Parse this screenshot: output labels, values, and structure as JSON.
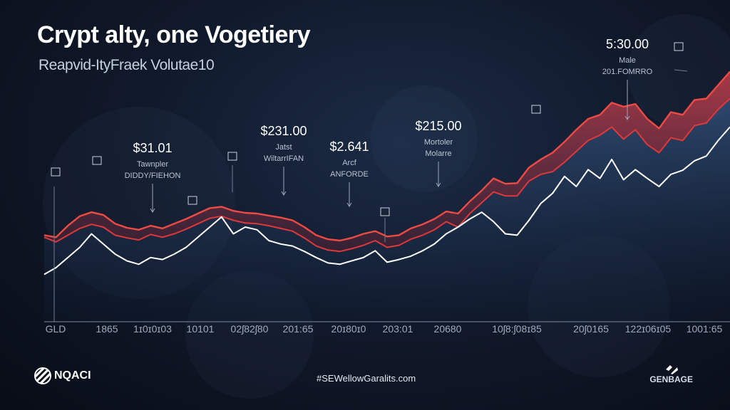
{
  "header": {
    "title": "Crypt alty, one Vogetiery",
    "subtitle": "Reapvid-ItyFraek Volutae10"
  },
  "footer": {
    "hashtag": "#SEWellowGaralits.com",
    "brand_left": "NQACI",
    "brand_right": "GENBAGE"
  },
  "colors": {
    "background": "#0b1220",
    "red_series": "#e0383a",
    "red_band": "#b5282c",
    "white_series": "#ffffff",
    "area_fill": "#2c4a73"
  },
  "chart_data": {
    "type": "line",
    "x_tick_labels": [
      "GLD",
      "1865",
      "1ɪ0ɪ0ɪ03",
      "10101",
      "02ʃ82ʃ80",
      "201:65",
      "20ɪ80ɪ0",
      "203:01",
      "20680",
      "10ʃ8:ʃ08ɪ85",
      "20ʃ0165",
      "122ɪ06ɪ05",
      "1001:65"
    ],
    "series": [
      {
        "points": [
          [
            0,
            128
          ],
          [
            1,
            125
          ],
          [
            2,
            142
          ],
          [
            3,
            156
          ],
          [
            4,
            162
          ],
          [
            5,
            158
          ],
          [
            6,
            145
          ],
          [
            7,
            139
          ],
          [
            8,
            136
          ],
          [
            9,
            142
          ],
          [
            10,
            138
          ],
          [
            11,
            145
          ],
          [
            12,
            152
          ],
          [
            13,
            160
          ],
          [
            14,
            168
          ],
          [
            15,
            170
          ],
          [
            16,
            164
          ],
          [
            17,
            161
          ],
          [
            18,
            160
          ],
          [
            19,
            157
          ],
          [
            20,
            154
          ],
          [
            21,
            150
          ],
          [
            22,
            140
          ],
          [
            23,
            128
          ],
          [
            24,
            122
          ],
          [
            25,
            120
          ],
          [
            26,
            124
          ],
          [
            27,
            130
          ],
          [
            28,
            134
          ],
          [
            29,
            126
          ],
          [
            30,
            128
          ],
          [
            31,
            138
          ],
          [
            32,
            144
          ],
          [
            33,
            152
          ],
          [
            34,
            163
          ],
          [
            35,
            160
          ],
          [
            36,
            178
          ],
          [
            37,
            194
          ],
          [
            38,
            212
          ],
          [
            39,
            204
          ],
          [
            40,
            205
          ],
          [
            41,
            228
          ],
          [
            42,
            240
          ],
          [
            43,
            250
          ],
          [
            44,
            266
          ],
          [
            45,
            284
          ],
          [
            46,
            300
          ],
          [
            47,
            306
          ],
          [
            48,
            324
          ],
          [
            49,
            318
          ],
          [
            50,
            322
          ],
          [
            51,
            300
          ],
          [
            52,
            286
          ],
          [
            53,
            310
          ],
          [
            54,
            306
          ],
          [
            55,
            328
          ],
          [
            56,
            330
          ],
          [
            57,
            350
          ],
          [
            58,
            370
          ]
        ]
      },
      {
        "points": [
          [
            0,
            125
          ],
          [
            1,
            118
          ],
          [
            2,
            128
          ],
          [
            3,
            138
          ],
          [
            4,
            144
          ],
          [
            5,
            140
          ],
          [
            6,
            128
          ],
          [
            7,
            124
          ],
          [
            8,
            121
          ],
          [
            9,
            129
          ],
          [
            10,
            125
          ],
          [
            11,
            130
          ],
          [
            12,
            137
          ],
          [
            13,
            145
          ],
          [
            14,
            153
          ],
          [
            15,
            156
          ],
          [
            16,
            150
          ],
          [
            17,
            146
          ],
          [
            18,
            145
          ],
          [
            19,
            142
          ],
          [
            20,
            138
          ],
          [
            21,
            134
          ],
          [
            22,
            124
          ],
          [
            23,
            112
          ],
          [
            24,
            106
          ],
          [
            25,
            104
          ],
          [
            26,
            108
          ],
          [
            27,
            113
          ],
          [
            28,
            120
          ],
          [
            29,
            110
          ],
          [
            30,
            113
          ],
          [
            31,
            122
          ],
          [
            32,
            128
          ],
          [
            33,
            136
          ],
          [
            34,
            148
          ],
          [
            35,
            140
          ],
          [
            36,
            160
          ],
          [
            37,
            176
          ],
          [
            38,
            192
          ],
          [
            39,
            186
          ],
          [
            40,
            186
          ],
          [
            41,
            208
          ],
          [
            42,
            218
          ],
          [
            43,
            222
          ],
          [
            44,
            236
          ],
          [
            45,
            252
          ],
          [
            46,
            268
          ],
          [
            47,
            276
          ],
          [
            48,
            288
          ],
          [
            49,
            270
          ],
          [
            50,
            284
          ],
          [
            51,
            262
          ],
          [
            52,
            250
          ],
          [
            53,
            272
          ],
          [
            54,
            268
          ],
          [
            55,
            290
          ],
          [
            56,
            294
          ],
          [
            57,
            314
          ],
          [
            58,
            330
          ]
        ]
      },
      {
        "points": [
          [
            0,
            70
          ],
          [
            1,
            80
          ],
          [
            2,
            95
          ],
          [
            3,
            110
          ],
          [
            4,
            130
          ],
          [
            5,
            115
          ],
          [
            6,
            100
          ],
          [
            7,
            90
          ],
          [
            8,
            85
          ],
          [
            9,
            95
          ],
          [
            10,
            92
          ],
          [
            11,
            100
          ],
          [
            12,
            110
          ],
          [
            13,
            125
          ],
          [
            14,
            140
          ],
          [
            15,
            155
          ],
          [
            16,
            130
          ],
          [
            17,
            140
          ],
          [
            18,
            136
          ],
          [
            19,
            120
          ],
          [
            20,
            115
          ],
          [
            21,
            112
          ],
          [
            22,
            104
          ],
          [
            23,
            95
          ],
          [
            24,
            87
          ],
          [
            25,
            85
          ],
          [
            26,
            90
          ],
          [
            27,
            95
          ],
          [
            28,
            105
          ],
          [
            29,
            88
          ],
          [
            30,
            92
          ],
          [
            31,
            97
          ],
          [
            32,
            105
          ],
          [
            33,
            115
          ],
          [
            34,
            130
          ],
          [
            35,
            140
          ],
          [
            36,
            152
          ],
          [
            37,
            162
          ],
          [
            38,
            148
          ],
          [
            39,
            130
          ],
          [
            40,
            128
          ],
          [
            41,
            150
          ],
          [
            42,
            175
          ],
          [
            43,
            190
          ],
          [
            44,
            215
          ],
          [
            45,
            200
          ],
          [
            46,
            225
          ],
          [
            47,
            212
          ],
          [
            48,
            240
          ],
          [
            49,
            210
          ],
          [
            50,
            225
          ],
          [
            51,
            212
          ],
          [
            52,
            200
          ],
          [
            53,
            218
          ],
          [
            54,
            224
          ],
          [
            55,
            238
          ],
          [
            56,
            245
          ],
          [
            57,
            268
          ],
          [
            58,
            288
          ]
        ]
      }
    ],
    "annotations": [
      {
        "price": "$31.01",
        "label": "Tawnpler",
        "sublabel": "DIDDY/FIEHON"
      },
      {
        "price": "$231.00",
        "label": "Jatst",
        "sublabel": "WiltarrIFAN"
      },
      {
        "price": "$2.641",
        "label": "Arcf",
        "sublabel": "ANFORDE"
      },
      {
        "price": "$215.00",
        "label": "Mortoler",
        "sublabel": "Molarre"
      },
      {
        "price": "5:30.00",
        "label": "Male",
        "sublabel": "201.FOMRRO"
      }
    ],
    "grid": false,
    "legend": "none"
  }
}
